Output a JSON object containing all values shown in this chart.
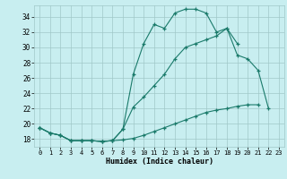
{
  "xlabel": "Humidex (Indice chaleur)",
  "bg_color": "#c8eef0",
  "grid_color": "#a0c8c8",
  "line_color": "#1a7a6a",
  "xlim": [
    -0.5,
    23.5
  ],
  "ylim": [
    17.0,
    35.5
  ],
  "yticks": [
    18,
    20,
    22,
    24,
    26,
    28,
    30,
    32,
    34
  ],
  "xticks": [
    0,
    1,
    2,
    3,
    4,
    5,
    6,
    7,
    8,
    9,
    10,
    11,
    12,
    13,
    14,
    15,
    16,
    17,
    18,
    19,
    20,
    21,
    22,
    23
  ],
  "line1_x": [
    0,
    1,
    2,
    3,
    4,
    5,
    6,
    7,
    8,
    9,
    10,
    11,
    12,
    13,
    14,
    15,
    16,
    17,
    18,
    19,
    20,
    21,
    22
  ],
  "line1_y": [
    19.5,
    18.8,
    18.5,
    17.8,
    17.8,
    17.8,
    17.7,
    17.8,
    19.3,
    22.2,
    23.5,
    25.0,
    26.5,
    28.5,
    30.0,
    30.5,
    31.0,
    31.5,
    32.5,
    29.0,
    28.5,
    27.0,
    22.0
  ],
  "line2_x": [
    0,
    1,
    2,
    3,
    4,
    5,
    6,
    7,
    8,
    9,
    10,
    11,
    12,
    13,
    14,
    15,
    16,
    17,
    18,
    19
  ],
  "line2_y": [
    19.5,
    18.8,
    18.5,
    17.8,
    17.8,
    17.8,
    17.7,
    17.8,
    19.3,
    26.5,
    30.5,
    33.0,
    32.5,
    34.5,
    35.0,
    35.0,
    34.5,
    32.0,
    32.5,
    30.5
  ],
  "line3_x": [
    0,
    1,
    2,
    3,
    4,
    5,
    6,
    7,
    8,
    9,
    10,
    11,
    12,
    13,
    14,
    15,
    16,
    17,
    18,
    19,
    20,
    21
  ],
  "line3_y": [
    19.5,
    18.8,
    18.5,
    17.8,
    17.8,
    17.8,
    17.7,
    17.8,
    17.9,
    18.1,
    18.5,
    19.0,
    19.5,
    20.0,
    20.5,
    21.0,
    21.5,
    21.8,
    22.0,
    22.3,
    22.5,
    22.5
  ]
}
